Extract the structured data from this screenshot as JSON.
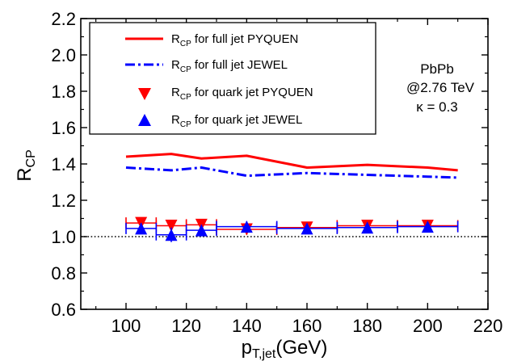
{
  "chart_data": {
    "type": "line",
    "xlabel": {
      "main": "p",
      "sub": "T,jet",
      "unit": "(GeV)"
    },
    "ylabel": {
      "main": "R",
      "sub": "CP"
    },
    "xlim": [
      85,
      220
    ],
    "ylim": [
      0.6,
      2.2
    ],
    "xticks": [
      100,
      120,
      140,
      160,
      180,
      200,
      220
    ],
    "yticks": [
      0.6,
      0.8,
      1.0,
      1.2,
      1.4,
      1.6,
      1.8,
      2.0,
      2.2
    ],
    "xtick_labels": [
      "100",
      "120",
      "140",
      "160",
      "180",
      "200",
      "220"
    ],
    "ytick_labels": [
      "0.6",
      "0.8",
      "1.0",
      "1.2",
      "1.4",
      "1.6",
      "1.8",
      "2.0",
      "2.2"
    ],
    "reference_line": {
      "y": 1.0,
      "style": "dotted",
      "color": "#000000"
    },
    "legend": {
      "placement": "top-left"
    },
    "annotations": [
      "PbPb",
      "@2.76 TeV",
      "κ = 0.3"
    ],
    "series": [
      {
        "name": {
          "main": "R",
          "sub": "CP",
          "rest": " for full jet PYQUEN"
        },
        "style": "solid-line",
        "color": "#ff0000",
        "x": [
          100,
          115,
          125,
          140,
          160,
          180,
          200,
          210
        ],
        "y": [
          1.44,
          1.455,
          1.43,
          1.445,
          1.38,
          1.395,
          1.38,
          1.365
        ]
      },
      {
        "name": {
          "main": "R",
          "sub": "CP",
          "rest": " for full jet JEWEL"
        },
        "style": "dash-dot-line",
        "color": "#0000ff",
        "x": [
          100,
          115,
          125,
          140,
          160,
          180,
          200,
          210
        ],
        "y": [
          1.38,
          1.365,
          1.38,
          1.335,
          1.35,
          1.34,
          1.33,
          1.325
        ]
      },
      {
        "name": {
          "main": "R",
          "sub": "CP",
          "rest": " for quark jet PYQUEN"
        },
        "style": "marker-down-triangle",
        "color": "#ff0000",
        "x": [
          105,
          115,
          125,
          140,
          160,
          180,
          200
        ],
        "y": [
          1.075,
          1.06,
          1.065,
          1.04,
          1.05,
          1.06,
          1.06
        ],
        "xerr": [
          5,
          5,
          5,
          10,
          10,
          10,
          10
        ],
        "yerr": [
          0.03,
          0.03,
          0.03,
          0.03,
          0.02,
          0.02,
          0.02
        ]
      },
      {
        "name": {
          "main": "R",
          "sub": "CP",
          "rest": " for quark jet JEWEL"
        },
        "style": "marker-up-triangle",
        "color": "#0000ff",
        "x": [
          105,
          115,
          125,
          140,
          160,
          180,
          200
        ],
        "y": [
          1.045,
          1.01,
          1.035,
          1.055,
          1.045,
          1.05,
          1.055
        ],
        "xerr": [
          5,
          5,
          5,
          10,
          10,
          10,
          10
        ],
        "yerr": [
          0.03,
          0.04,
          0.03,
          0.03,
          0.02,
          0.02,
          0.02
        ]
      }
    ]
  }
}
